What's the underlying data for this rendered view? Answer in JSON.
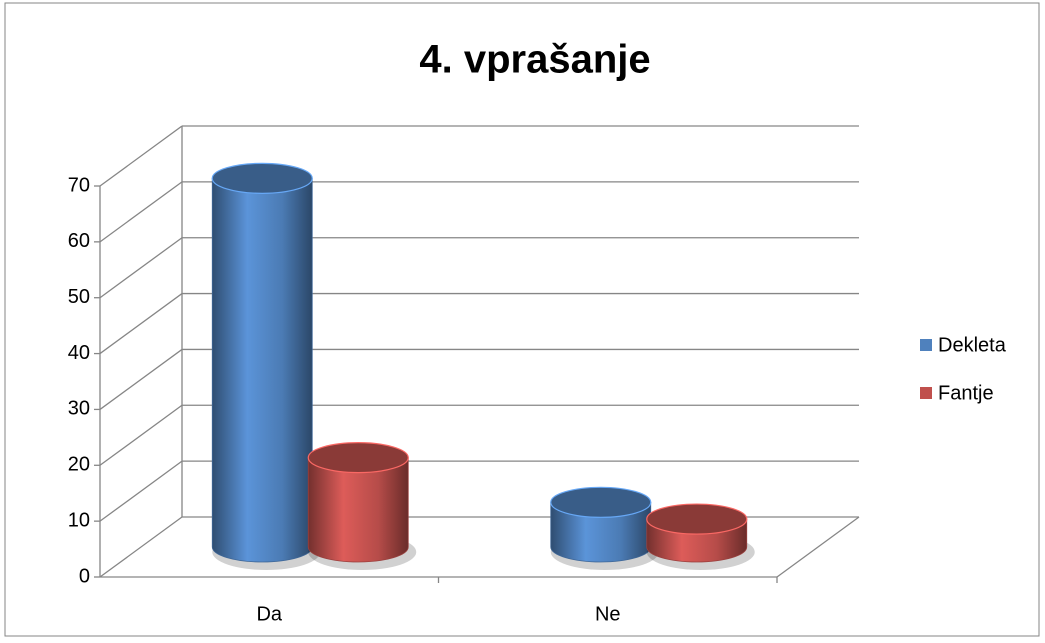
{
  "chart_data": {
    "type": "bar3d",
    "title": "4. vprašanje",
    "categories": [
      "Da",
      "Ne"
    ],
    "series": [
      {
        "name": "Dekleta",
        "color": "#4f81bd",
        "values": [
          66,
          8
        ]
      },
      {
        "name": "Fantje",
        "color": "#c0504d",
        "values": [
          16,
          5
        ]
      }
    ],
    "ylim": [
      0,
      70
    ],
    "yticks": [
      0,
      10,
      20,
      30,
      40,
      50,
      60,
      70
    ],
    "grid": true,
    "legend": "right"
  }
}
